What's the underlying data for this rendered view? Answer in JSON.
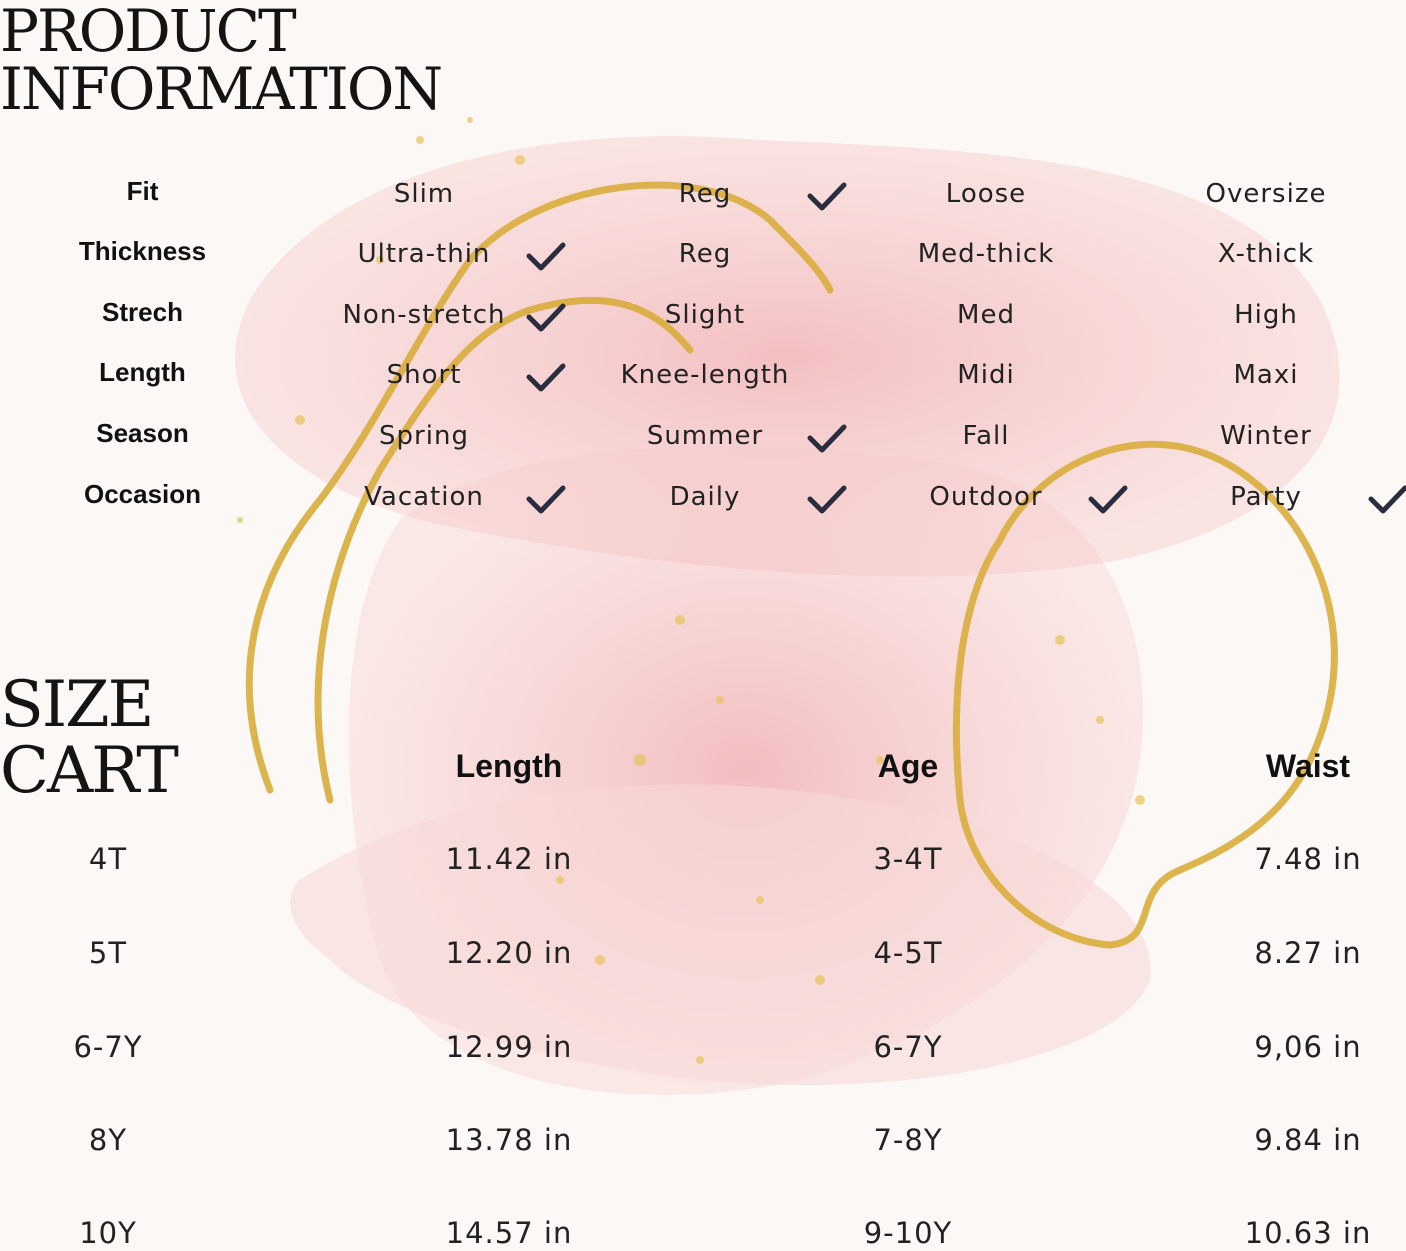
{
  "product_info": {
    "title": "PRODUCT\nINFORMATION",
    "rows": [
      {
        "label": "Fit",
        "options": [
          "Slim",
          "Reg",
          "Loose",
          "Oversize"
        ],
        "checked": [
          1
        ]
      },
      {
        "label": "Thickness",
        "options": [
          "Ultra-thin",
          "Reg",
          "Med-thick",
          "X-thick"
        ],
        "checked": [
          0
        ]
      },
      {
        "label": "Strech",
        "options": [
          "Non-stretch",
          "Slight",
          "Med",
          "High"
        ],
        "checked": [
          0
        ]
      },
      {
        "label": "Length",
        "options": [
          "Short",
          "Knee-length",
          "Midi",
          "Maxi"
        ],
        "checked": [
          0
        ]
      },
      {
        "label": "Season",
        "options": [
          "Spring",
          "Summer",
          "Fall",
          "Winter"
        ],
        "checked": [
          1
        ]
      },
      {
        "label": "Occasion",
        "options": [
          "Vacation",
          "Daily",
          "Outdoor",
          "Party"
        ],
        "checked": [
          0,
          1,
          2,
          3
        ]
      }
    ]
  },
  "size_chart": {
    "title": "SIZE\nCART",
    "headers": [
      "",
      "Length",
      "Age",
      "Waist"
    ],
    "rows": [
      [
        "4T",
        "11.42 in",
        "3-4T",
        "7.48 in"
      ],
      [
        "5T",
        "12.20 in",
        "4-5T",
        "8.27 in"
      ],
      [
        "6-7Y",
        "12.99 in",
        "6-7Y",
        "9,06 in"
      ],
      [
        "8Y",
        "13.78 in",
        "7-8Y",
        "9.84 in"
      ],
      [
        "10Y",
        "14.57 in",
        "9-10Y",
        "10.63 in"
      ]
    ]
  },
  "colors": {
    "background": "#fcf8f6",
    "pink": "#f4c6c6",
    "gold": "#d9ad3c",
    "check": "#2a2d3e"
  }
}
